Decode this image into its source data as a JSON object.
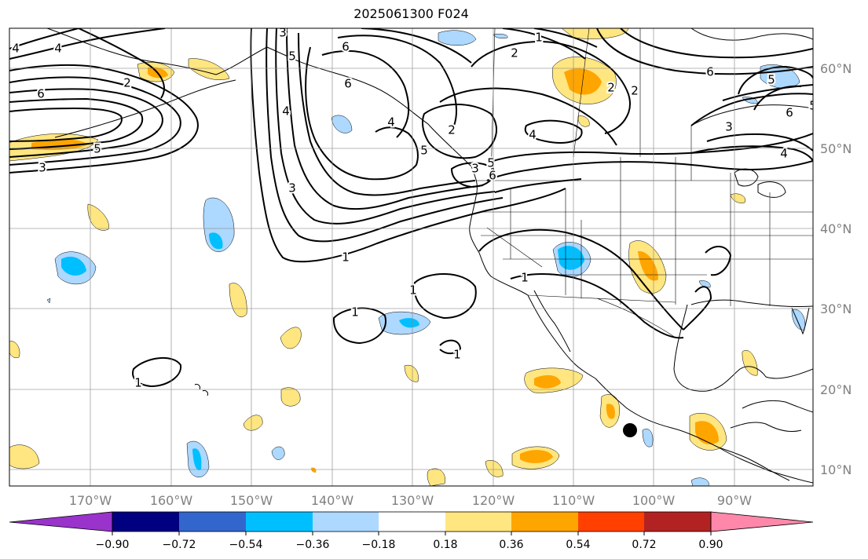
{
  "title": "2025061300 F024",
  "lon_ticks": [
    "170°W",
    "160°W",
    "150°W",
    "140°W",
    "130°W",
    "120°W",
    "110°W",
    "100°W",
    "90°W"
  ],
  "lat_ticks": [
    "60°N",
    "50°N",
    "40°N",
    "30°N",
    "20°N",
    "10°N"
  ],
  "colorbar": {
    "colors": [
      "#9933cc",
      "#000080",
      "#3366cc",
      "#00bfff",
      "#add8ff",
      "#ffffff",
      "#ffe680",
      "#ffa500",
      "#ff4000",
      "#b22222",
      "#ff88aa"
    ],
    "ticks": [
      "−0.90",
      "−0.72",
      "−0.54",
      "−0.36",
      "−0.18",
      "0.18",
      "0.36",
      "0.54",
      "0.72",
      "0.90"
    ]
  },
  "contour_labels": [
    "6",
    "1",
    "5",
    "4",
    "2",
    "5",
    "6",
    "2",
    "2",
    "3",
    "4",
    "5",
    "6",
    "3",
    "4",
    "2",
    "3",
    "6",
    "4",
    "5",
    "5",
    "6",
    "6",
    "4",
    "3",
    "1",
    "1",
    "1",
    "1",
    "1",
    "1",
    "3",
    "4",
    "5",
    "2"
  ],
  "marker": "storm-center-dot"
}
